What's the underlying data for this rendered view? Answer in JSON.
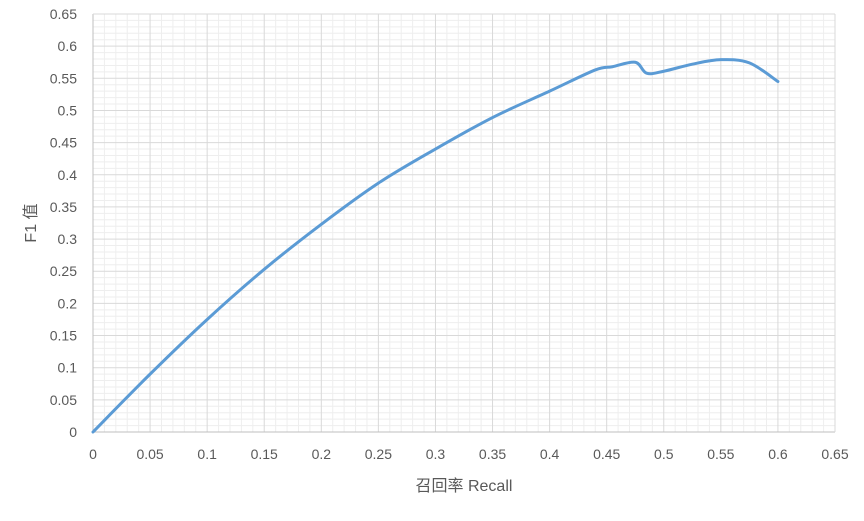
{
  "chart_data": {
    "type": "line",
    "xlabel": "召回率 Recall",
    "ylabel": "F1 值",
    "xlim": [
      0,
      0.65
    ],
    "ylim": [
      0,
      0.65
    ],
    "x_ticks": [
      "0",
      "0.05",
      "0.1",
      "0.15",
      "0.2",
      "0.25",
      "0.3",
      "0.35",
      "0.4",
      "0.45",
      "0.5",
      "0.55",
      "0.6",
      "0.65"
    ],
    "y_ticks": [
      "0",
      "0.05",
      "0.1",
      "0.15",
      "0.2",
      "0.25",
      "0.3",
      "0.35",
      "0.4",
      "0.45",
      "0.5",
      "0.55",
      "0.6",
      "0.65"
    ],
    "grid": true,
    "minor_grid": true,
    "legend": "none",
    "series": [
      {
        "color": "#5B9BD5",
        "x": [
          0,
          0.05,
          0.1,
          0.15,
          0.2,
          0.25,
          0.3,
          0.35,
          0.4,
          0.44,
          0.455,
          0.475,
          0.485,
          0.5,
          0.525,
          0.55,
          0.575,
          0.6
        ],
        "y": [
          0,
          0.09,
          0.175,
          0.253,
          0.323,
          0.387,
          0.44,
          0.489,
          0.53,
          0.563,
          0.568,
          0.575,
          0.558,
          0.561,
          0.572,
          0.579,
          0.574,
          0.545
        ]
      }
    ]
  }
}
